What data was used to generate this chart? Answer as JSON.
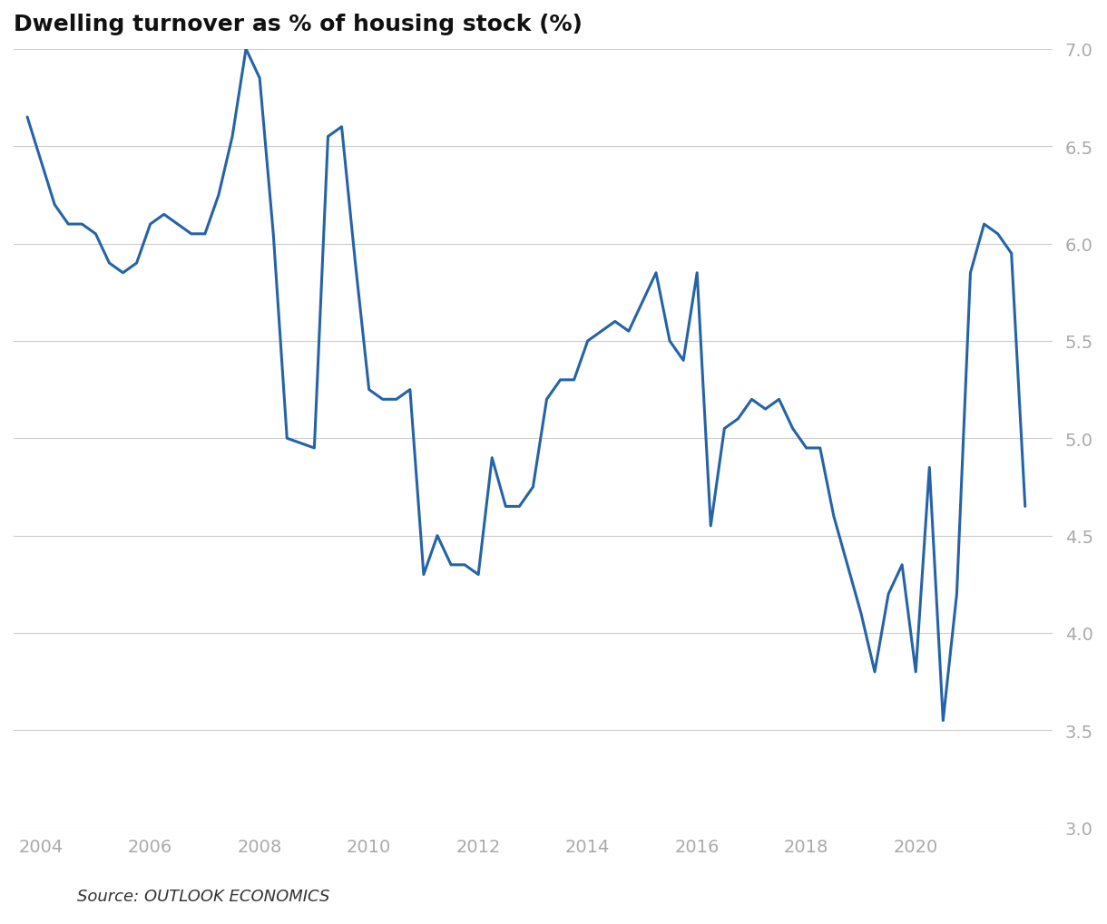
{
  "title": "Dwelling turnover as % of housing stock (%)",
  "source": "Source: OUTLOOK ECONOMICS",
  "line_color": "#2563a8",
  "line_width": 2.2,
  "background_color": "#ffffff",
  "grid_color": "#cccccc",
  "tick_color": "#aaaaaa",
  "title_fontsize": 18,
  "source_fontsize": 13,
  "ylim": [
    3.0,
    7.0
  ],
  "yticks": [
    3.0,
    3.5,
    4.0,
    4.5,
    5.0,
    5.5,
    6.0,
    6.5,
    7.0
  ],
  "xticks": [
    2004,
    2006,
    2008,
    2010,
    2012,
    2014,
    2016,
    2018,
    2020
  ],
  "xlim": [
    2003.5,
    2022.5
  ],
  "data": {
    "x": [
      2003.75,
      2004.25,
      2004.5,
      2004.75,
      2005.0,
      2005.25,
      2005.5,
      2005.75,
      2006.0,
      2006.25,
      2006.5,
      2006.75,
      2007.0,
      2007.25,
      2007.5,
      2007.75,
      2008.0,
      2008.25,
      2008.5,
      2009.0,
      2009.25,
      2009.5,
      2009.75,
      2010.0,
      2010.25,
      2010.5,
      2010.75,
      2011.0,
      2011.25,
      2011.5,
      2011.75,
      2012.0,
      2012.25,
      2012.5,
      2012.75,
      2013.0,
      2013.25,
      2013.5,
      2013.75,
      2014.0,
      2014.25,
      2014.5,
      2014.75,
      2015.0,
      2015.25,
      2015.5,
      2015.75,
      2016.0,
      2016.25,
      2016.5,
      2016.75,
      2017.0,
      2017.25,
      2017.5,
      2017.75,
      2018.0,
      2018.25,
      2018.5,
      2018.75,
      2019.0,
      2019.25,
      2019.5,
      2019.75,
      2020.0,
      2020.25,
      2020.5,
      2020.75,
      2021.0,
      2021.25,
      2021.5,
      2021.75,
      2022.0
    ],
    "y": [
      6.65,
      6.2,
      6.1,
      6.1,
      6.05,
      5.9,
      5.85,
      5.9,
      6.1,
      6.15,
      6.1,
      6.05,
      6.05,
      6.25,
      6.55,
      7.0,
      6.85,
      6.05,
      5.0,
      4.95,
      6.55,
      6.6,
      5.9,
      5.25,
      5.2,
      5.2,
      5.25,
      4.3,
      4.5,
      4.35,
      4.35,
      4.3,
      4.9,
      4.65,
      4.65,
      4.75,
      5.2,
      5.3,
      5.3,
      5.5,
      5.55,
      5.6,
      5.55,
      5.7,
      5.85,
      5.5,
      5.4,
      5.85,
      4.55,
      5.05,
      5.1,
      5.2,
      5.15,
      5.2,
      5.05,
      4.95,
      4.95,
      4.6,
      4.35,
      4.1,
      3.8,
      4.2,
      4.35,
      3.8,
      4.85,
      3.55,
      4.2,
      5.85,
      6.1,
      6.05,
      5.95,
      4.65
    ]
  }
}
